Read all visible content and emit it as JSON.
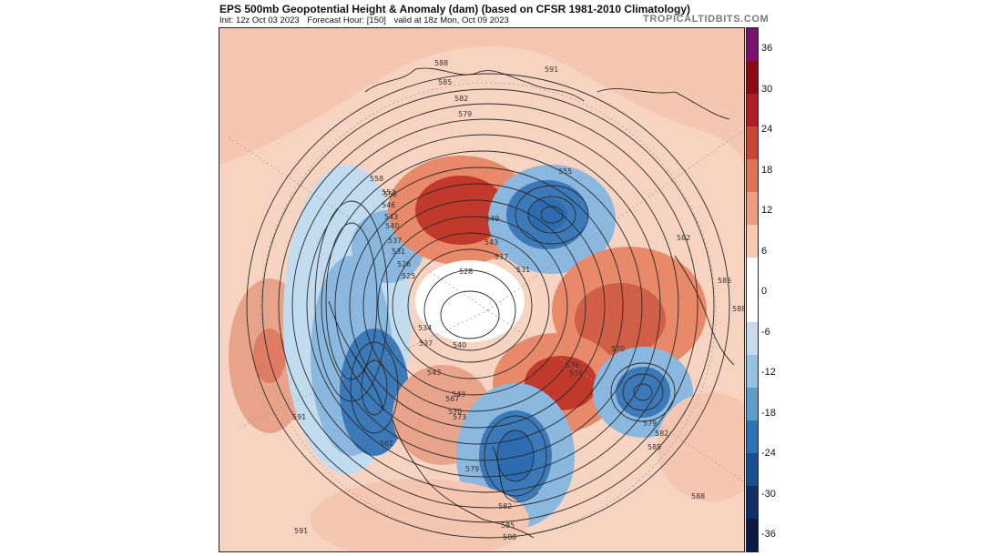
{
  "header": {
    "title": "EPS 500mb Geopotential Height & Anomaly (dam) (based on CFSR 1981-2010 Climatology)",
    "init": "Init: 12z Oct 03 2023",
    "forecast_hour": "Forecast Hour: [150]",
    "valid": "valid at 18z Mon, Oct 09 2023",
    "brand": "TROPICALTIDBITS.COM"
  },
  "colorbar": {
    "labels": [
      "36",
      "30",
      "24",
      "18",
      "12",
      "6",
      "0",
      "-6",
      "-12",
      "-18",
      "-24",
      "-30",
      "-36"
    ],
    "colors": [
      "#7b1070",
      "#8c0b12",
      "#b01d24",
      "#cb4535",
      "#dd7357",
      "#ee9e80",
      "#f8c9b1",
      "#ffffff",
      "#ffffff",
      "#c6dcee",
      "#97c1e0",
      "#5e9ccc",
      "#2e73b3",
      "#1a4f8f",
      "#0f2f66",
      "#0b1a45"
    ]
  },
  "map": {
    "contour_labels": [
      "588",
      "585",
      "582",
      "579",
      "558",
      "555",
      "549",
      "543",
      "537",
      "528",
      "531",
      "555",
      "552",
      "546",
      "543",
      "540",
      "537",
      "531",
      "528",
      "525",
      "534",
      "537",
      "540",
      "543",
      "549",
      "567",
      "570",
      "573",
      "576",
      "579",
      "582",
      "585",
      "588",
      "570",
      "576",
      "579",
      "582",
      "585",
      "588",
      "591",
      "591",
      "591",
      "582",
      "585",
      "588",
      "561"
    ],
    "anomaly_colors": {
      "positive_strong": "#c0392b",
      "positive": "#e8896a",
      "positive_weak": "#f6c7b0",
      "negative_weak": "#c2dcef",
      "negative": "#6ea6d4",
      "negative_strong": "#2d6cb0"
    },
    "annotation_color": "#ff1010"
  }
}
